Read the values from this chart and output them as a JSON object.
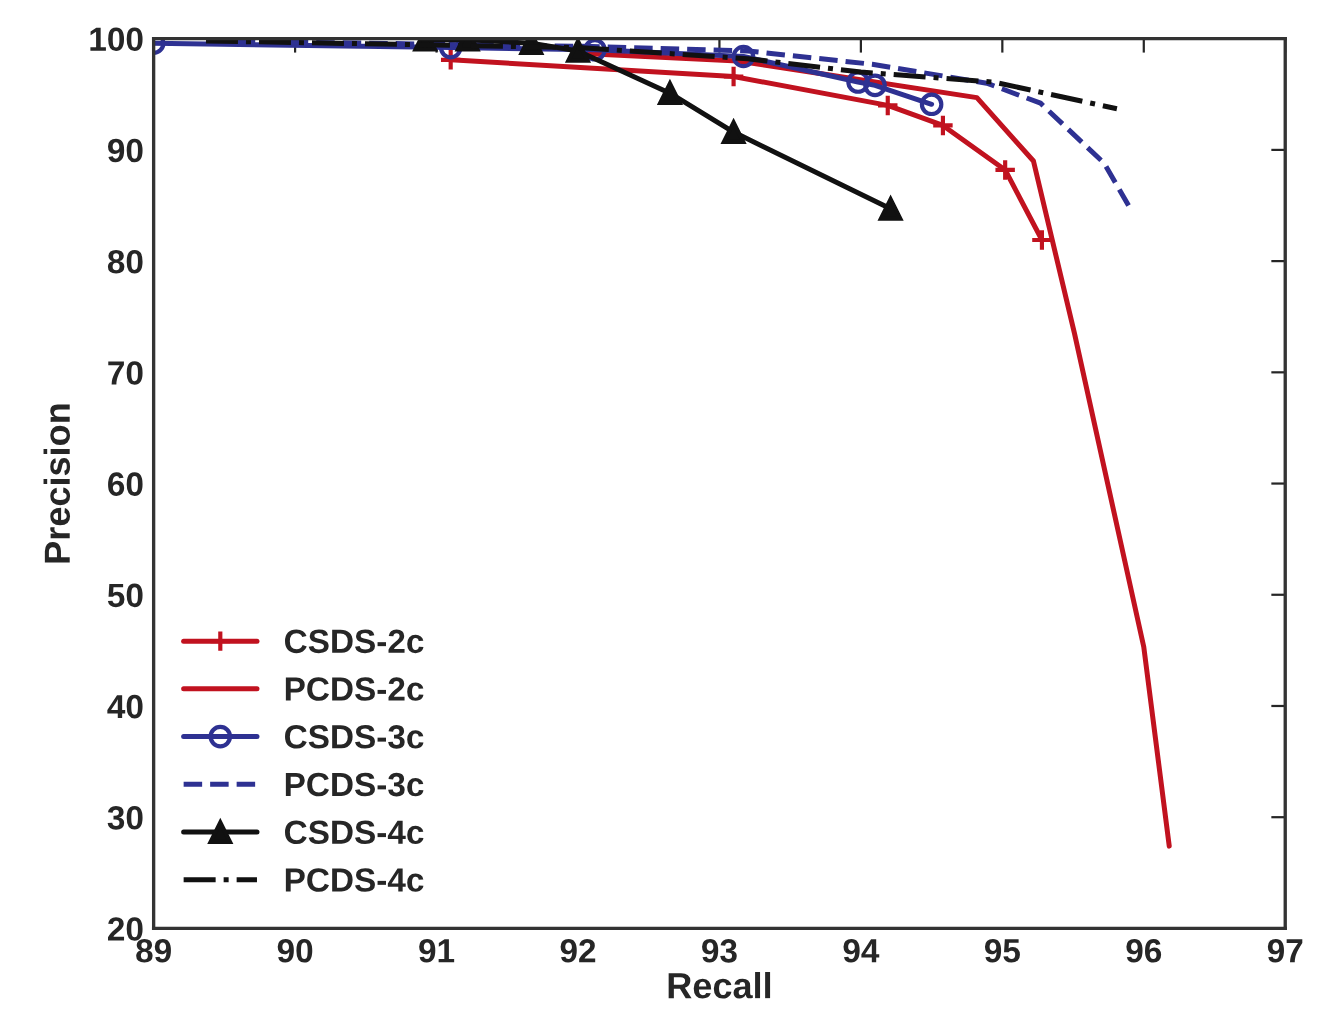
{
  "chart_data": {
    "type": "line",
    "xlabel": "Recall",
    "ylabel": "Precision",
    "xlim": [
      89,
      97
    ],
    "ylim": [
      20,
      100
    ],
    "xticks": [
      89,
      90,
      91,
      92,
      93,
      94,
      95,
      96,
      97
    ],
    "yticks": [
      20,
      30,
      40,
      50,
      60,
      70,
      80,
      90,
      100
    ],
    "grid": false,
    "legend": "bottom left",
    "series": [
      {
        "name": "CSDS-2c",
        "color": "#c1121f",
        "marker": "cross",
        "line_style": "solid",
        "x": [
          91.1,
          93.1,
          94.19,
          94.58,
          95.02,
          95.28
        ],
        "values": [
          98.1,
          96.6,
          94.0,
          92.2,
          88.2,
          81.9
        ]
      },
      {
        "name": "PCDS-2c",
        "color": "#c1121f",
        "marker": "none",
        "line_style": "solid",
        "x": [
          92.0,
          93.13,
          94.82,
          95.22,
          95.51,
          96.0,
          96.18
        ],
        "values": [
          98.7,
          98.0,
          94.7,
          89.0,
          73.5,
          45.3,
          27.4
        ]
      },
      {
        "name": "CSDS-3c",
        "color": "#2e3192",
        "marker": "circle",
        "line_style": "solid",
        "x": [
          89.0,
          91.1,
          92.12,
          93.17,
          93.98,
          94.1,
          94.5
        ],
        "values": [
          99.6,
          99.2,
          99.0,
          98.4,
          96.1,
          95.8,
          94.1
        ]
      },
      {
        "name": "PCDS-3c",
        "color": "#2e3192",
        "marker": "none",
        "line_style": "dashed",
        "x": [
          89.4,
          92.1,
          93.2,
          94.08,
          94.89,
          95.27,
          95.72,
          95.92
        ],
        "values": [
          99.8,
          99.3,
          98.9,
          97.7,
          96.0,
          94.2,
          88.8,
          84.4
        ]
      },
      {
        "name": "CSDS-4c",
        "color": "#111111",
        "marker": "triangle",
        "line_style": "solid",
        "x": [
          90.92,
          91.22,
          91.67,
          92.0,
          92.65,
          93.1,
          94.21
        ],
        "values": [
          99.9,
          99.9,
          99.6,
          98.9,
          95.1,
          91.6,
          84.7
        ]
      },
      {
        "name": "PCDS-4c",
        "color": "#111111",
        "marker": "none",
        "line_style": "dashdot",
        "x": [
          89.37,
          92.0,
          93.2,
          94.0,
          94.94,
          95.81
        ],
        "values": [
          99.8,
          99.2,
          98.2,
          97.0,
          96.1,
          93.7
        ]
      }
    ]
  }
}
